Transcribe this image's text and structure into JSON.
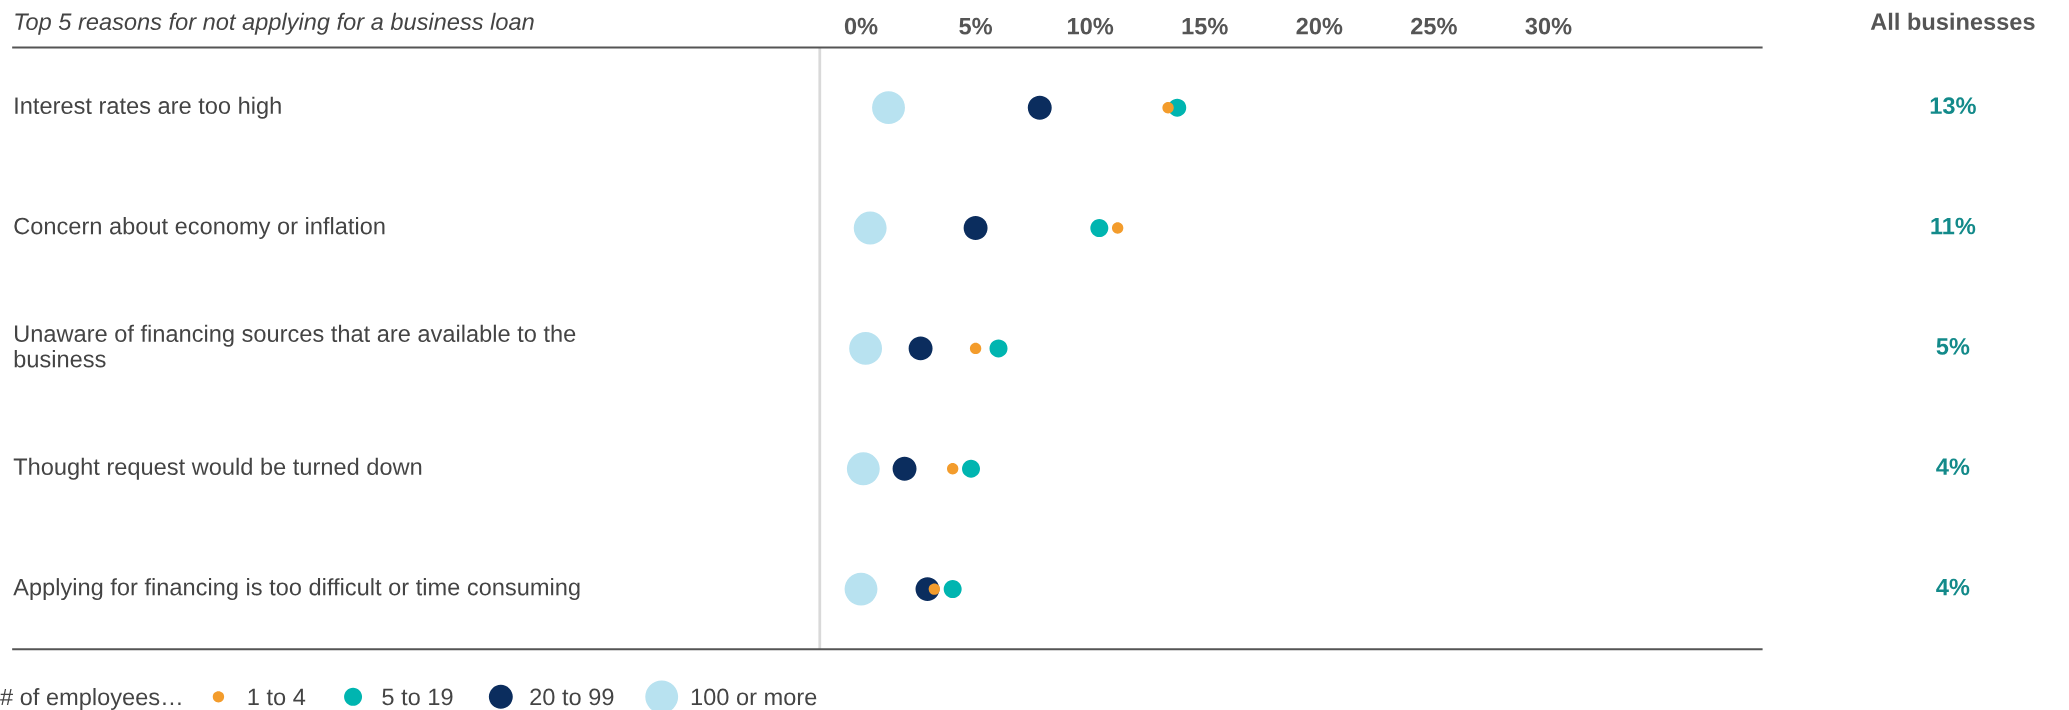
{
  "chart_data": {
    "type": "bubble",
    "title": "Top 5 reasons for not applying for a business loan",
    "categories": [
      "Interest rates are too high",
      "Concern about economy or inflation",
      "Unaware of financing sources that are available to the\nbusiness",
      "Thought request would be turned down",
      "Applying for financing is too difficult or time consuming"
    ],
    "series": [
      {
        "name": "100 or more",
        "color": "#b8e2f0",
        "values": [
          1.2,
          0.4,
          0.2,
          0.1,
          0.0
        ],
        "sizes": [
          1,
          1,
          1,
          1,
          1
        ]
      },
      {
        "name": "20 to 99",
        "color": "#0b2d5e",
        "values": [
          7.8,
          5.0,
          2.6,
          1.9,
          2.9
        ],
        "sizes": [
          0.53,
          0.53,
          0.53,
          0.53,
          0.53
        ]
      },
      {
        "name": "5 to 19",
        "color": "#00b5b0",
        "values": [
          13.8,
          10.4,
          6.0,
          4.8,
          4.0
        ],
        "sizes": [
          0.3,
          0.3,
          0.3,
          0.3,
          0.3
        ]
      },
      {
        "name": "1 to 4",
        "color": "#f39c2c",
        "values": [
          13.4,
          11.2,
          5.0,
          4.0,
          3.2
        ],
        "sizes": [
          0.12,
          0.12,
          0.12,
          0.12,
          0.12
        ]
      }
    ],
    "orientation": "horizontal",
    "xlim": [
      -37.0,
      39.3
    ],
    "ref_lines": [
      {
        "axis": "x",
        "value": -1.8,
        "color": "#d9d9d9"
      }
    ],
    "xticks": [
      {
        "value": 0,
        "label": "0%"
      },
      {
        "value": 5,
        "label": "5%"
      },
      {
        "value": 10,
        "label": "10%"
      },
      {
        "value": 15,
        "label": "15%"
      },
      {
        "value": 20,
        "label": "20%"
      },
      {
        "value": 25,
        "label": "25%"
      },
      {
        "value": 30,
        "label": "30%"
      }
    ],
    "legend": "bottom",
    "legend_title": "# of employees…",
    "grid": false,
    "annotations": [
      "All businesses",
      "13%",
      "11%",
      "5%",
      "4%",
      "4%"
    ]
  }
}
